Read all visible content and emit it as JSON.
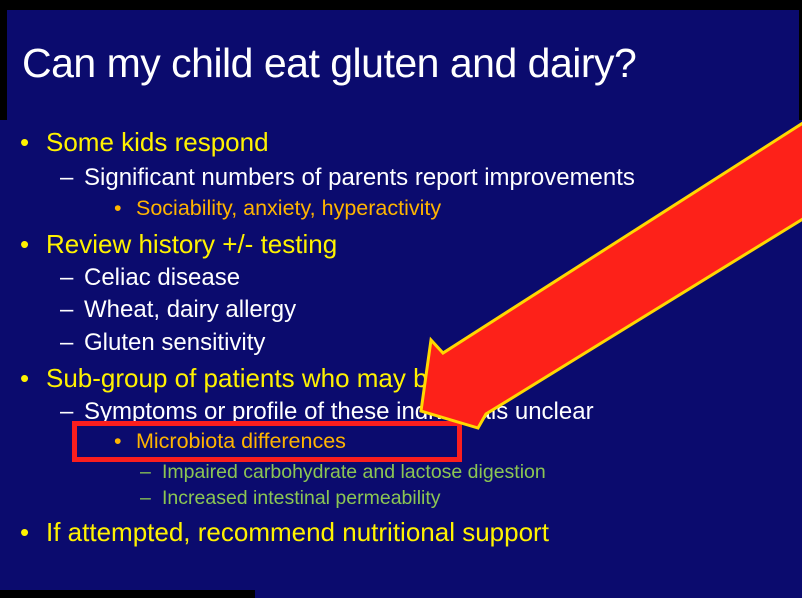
{
  "slide": {
    "title": "Can my child eat gluten and dairy?",
    "bullets": [
      {
        "level": 1,
        "color": "yellow",
        "marker": "•",
        "text": "Some kids respond"
      },
      {
        "level": 2,
        "color": "white",
        "marker": "–",
        "text": "Significant numbers of parents report improvements"
      },
      {
        "level": 3,
        "color": "orange",
        "marker": "•",
        "text": "Sociability, anxiety, hyperactivity"
      },
      {
        "level": 1,
        "color": "yellow",
        "marker": "•",
        "text": "Review history +/- testing"
      },
      {
        "level": 2,
        "color": "white",
        "marker": "–",
        "text": "Celiac disease"
      },
      {
        "level": 2,
        "color": "white",
        "marker": "–",
        "text": "Wheat, dairy allergy"
      },
      {
        "level": 2,
        "color": "white",
        "marker": "–",
        "text": "Gluten sensitivity"
      },
      {
        "level": 1,
        "color": "yellow",
        "marker": "•",
        "text": "Sub-group of patients who may benefit"
      },
      {
        "level": 2,
        "color": "white",
        "marker": "–",
        "text": "Symptoms or profile of these individuals unclear"
      },
      {
        "level": 3,
        "color": "orange",
        "marker": "•",
        "text": "Microbiota differences",
        "highlighted": true
      },
      {
        "level": 4,
        "color": "green",
        "marker": "–",
        "text": "Impaired carbohydrate and lactose digestion"
      },
      {
        "level": 4,
        "color": "green",
        "marker": "–",
        "text": "Increased intestinal permeability"
      },
      {
        "level": 1,
        "color": "yellow",
        "marker": "•",
        "text": "If attempted, recommend nutritional support"
      }
    ],
    "colors": {
      "background": "#0b0b6e",
      "yellow": "#fff200",
      "white": "#ffffff",
      "orange": "#ffb400",
      "green": "#8bc653",
      "arrow_fill": "#fd2119",
      "arrow_outline": "#ffd800",
      "highlight_border": "#fb1e1e"
    },
    "annotations": {
      "arrow": "red arrow pointing at highlighted bullet",
      "highlight_box": "red rectangle around Microbiota differences"
    }
  }
}
